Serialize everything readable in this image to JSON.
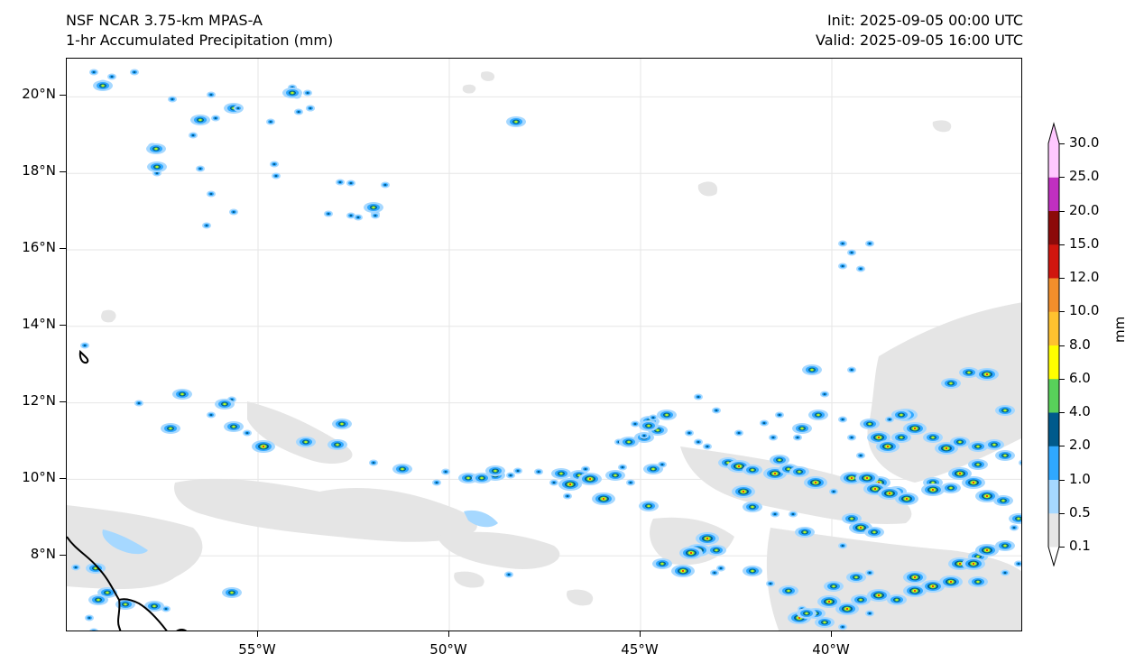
{
  "header": {
    "left_line1": "NSF NCAR 3.75-km MPAS-A",
    "left_line2": "1-hr Accumulated Precipitation (mm)",
    "right_line1": "Init: 2025-09-05 00:00 UTC",
    "right_line2": "Valid: 2025-09-05 16:00 UTC"
  },
  "map": {
    "projection": "PlateCarree",
    "lon_range": [
      -60,
      -35
    ],
    "lat_range": [
      6,
      21
    ],
    "lat_ticks": [
      "20°N",
      "18°N",
      "16°N",
      "14°N",
      "12°N",
      "10°N",
      "8°N"
    ],
    "lat_values": [
      20,
      18,
      16,
      14,
      12,
      10,
      8
    ],
    "lon_ticks": [
      "55°W",
      "50°W",
      "45°W",
      "40°W"
    ],
    "lon_values": [
      -55,
      -50,
      -45,
      -40
    ],
    "gridlines": true,
    "coastline_color": "#000000"
  },
  "colorbar": {
    "unit": "mm",
    "orientation": "vertical",
    "extend": "both",
    "levels": [
      "0.1",
      "0.5",
      "1.0",
      "2.0",
      "4.0",
      "6.0",
      "8.0",
      "10.0",
      "12.0",
      "15.0",
      "20.0",
      "25.0",
      "30.0"
    ],
    "colors": [
      "#e5e5e5",
      "#a6d8ff",
      "#2fa8ff",
      "#005a8c",
      "#58d05a",
      "#ffff00",
      "#ffc22f",
      "#f28e2b",
      "#d0160e",
      "#8c0a0a",
      "#c02fc0",
      "#ffc8ff"
    ],
    "under_color": "#ffffff",
    "over_color": "#ffc8ff"
  }
}
